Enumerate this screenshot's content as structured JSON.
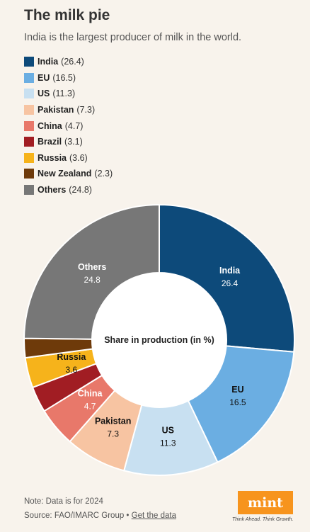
{
  "header": {
    "title": "The milk pie",
    "subtitle": "India is the largest producer of milk in the world."
  },
  "chart_data": {
    "type": "pie",
    "center_label": "Share in production (in %)",
    "legend_position": "top-left",
    "slices": [
      {
        "name": "India",
        "value": 26.4,
        "color": "#0d4a7a",
        "label_color": "#ffffff"
      },
      {
        "name": "EU",
        "value": 16.5,
        "color": "#6baee2",
        "label_color": "#111111"
      },
      {
        "name": "US",
        "value": 11.3,
        "color": "#c8e0f1",
        "label_color": "#111111"
      },
      {
        "name": "Pakistan",
        "value": 7.3,
        "color": "#f7c4a2",
        "label_color": "#111111"
      },
      {
        "name": "China",
        "value": 4.7,
        "color": "#e8786a",
        "label_color": "#ffffff"
      },
      {
        "name": "Brazil",
        "value": 3.1,
        "color": "#a11d23",
        "label_color": "#ffffff"
      },
      {
        "name": "Russia",
        "value": 3.6,
        "color": "#f6b31b",
        "label_color": "#111111"
      },
      {
        "name": "New Zealand",
        "value": 2.3,
        "color": "#6e3a0a",
        "label_color": "#ffffff"
      },
      {
        "name": "Others",
        "value": 24.8,
        "color": "#777777",
        "label_color": "#ffffff"
      }
    ]
  },
  "footer": {
    "note": "Note: Data is for 2024",
    "source_prefix": "Source: FAO/IMARC Group •",
    "source_link": "Get the data"
  },
  "brand": {
    "logo": "mint",
    "tagline": "Think Ahead. Think Growth."
  }
}
